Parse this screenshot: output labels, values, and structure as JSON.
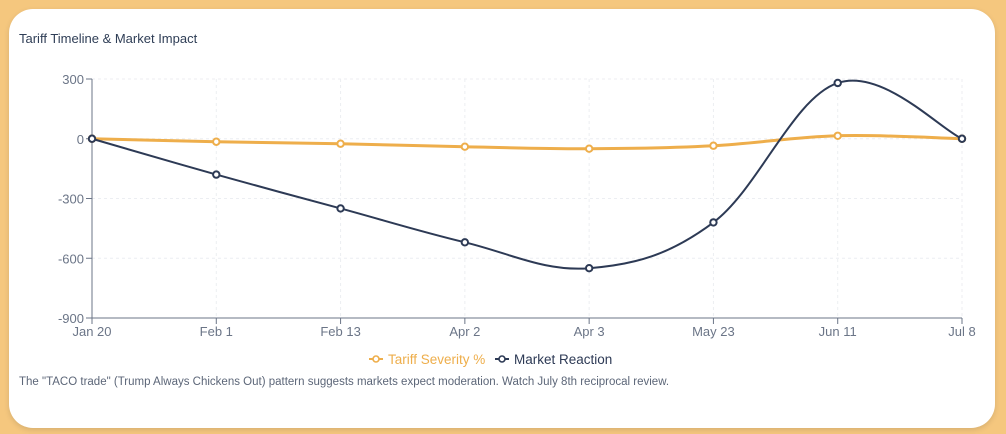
{
  "chart_data": {
    "type": "line",
    "title": "Tariff Timeline & Market Impact",
    "categories": [
      "Jan 20",
      "Feb 1",
      "Feb 13",
      "Apr 2",
      "Apr 3",
      "May 23",
      "Jun 11",
      "Jul 8"
    ],
    "series": [
      {
        "name": "Tariff Severity %",
        "color": "#eeae4b",
        "values": [
          0,
          -15,
          -25,
          -40,
          -50,
          -35,
          15,
          0
        ]
      },
      {
        "name": "Market Reaction",
        "color": "#2d3a55",
        "values": [
          0,
          -180,
          -350,
          -520,
          -650,
          -420,
          280,
          0
        ]
      }
    ],
    "yticks": [
      300,
      0,
      -300,
      -600,
      -900
    ],
    "ylim": [
      -900,
      300
    ],
    "grid": true,
    "legend_position": "bottom"
  },
  "footnote": "The \"TACO trade\" (Trump Always Chickens Out) pattern suggests markets expect moderation. Watch July 8th reciprocal review."
}
